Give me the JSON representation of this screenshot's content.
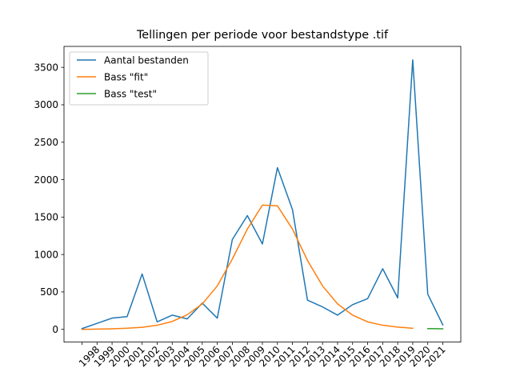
{
  "chart_data": {
    "type": "line",
    "title": "Tellingen per periode voor bestandstype .tif",
    "xlabel": "",
    "ylabel": "",
    "categories": [
      "",
      "1998",
      "1999",
      "2000",
      "2001",
      "2002",
      "2003",
      "2004",
      "2005",
      "2006",
      "2007",
      "2008",
      "2009",
      "2010",
      "2011",
      "2012",
      "2013",
      "2014",
      "2015",
      "2016",
      "2017",
      "2018",
      "2019",
      "2020",
      "2021"
    ],
    "ylim": [
      -170,
      3780
    ],
    "yticks": [
      0,
      500,
      1000,
      1500,
      2000,
      2500,
      3000,
      3500
    ],
    "grid": false,
    "legend_position": "top-left",
    "series": [
      {
        "name": "Aantal bestanden",
        "color": "#1f77b4",
        "values": [
          10,
          80,
          150,
          170,
          740,
          100,
          190,
          140,
          350,
          150,
          1200,
          1520,
          1140,
          2160,
          1600,
          390,
          300,
          190,
          330,
          410,
          810,
          420,
          3600,
          470,
          60
        ]
      },
      {
        "name": "Bass \"fit\"",
        "color": "#ff7f0e",
        "values": [
          0,
          3,
          8,
          15,
          28,
          55,
          105,
          195,
          340,
          580,
          940,
          1340,
          1660,
          1650,
          1340,
          920,
          580,
          340,
          190,
          100,
          55,
          30,
          15,
          null,
          null
        ]
      },
      {
        "name": "Bass \"test\"",
        "color": "#2ca02c",
        "values": [
          null,
          null,
          null,
          null,
          null,
          null,
          null,
          null,
          null,
          null,
          null,
          null,
          null,
          null,
          null,
          null,
          null,
          null,
          null,
          null,
          null,
          null,
          null,
          10,
          8
        ]
      }
    ]
  }
}
